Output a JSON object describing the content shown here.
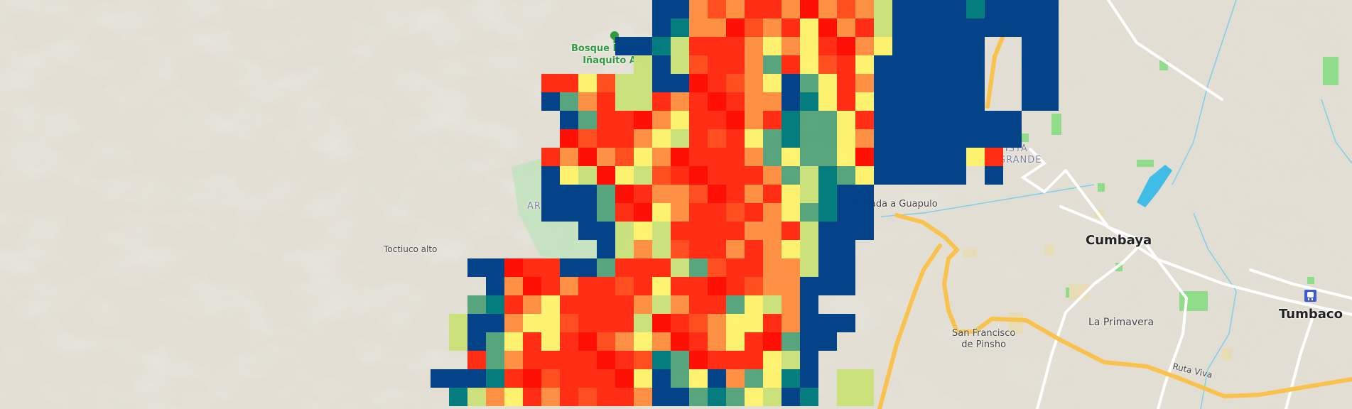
{
  "map": {
    "labels": {
      "bosque_line1": "Bosque Protector",
      "bosque_line2": "Iñaquito Alto",
      "ar": "AR",
      "toctiuco": "Toctiuco alto",
      "guapulo": "Entrada a Guapulo",
      "vista_line1": "VISTA",
      "vista_line2": "GRANDE",
      "cumbaya": "Cumbaya",
      "la_primavera": "La Primavera",
      "pinsho_line1": "San Francisco",
      "pinsho_line2": "de Pinsho",
      "tumbaco": "Tumbaco",
      "ruta_viva": "Ruta Viva"
    },
    "icons": [
      "tree-icon",
      "train-station-icon"
    ],
    "colors": {
      "land": "#e7e4df",
      "terrain": "#d6d1c4",
      "highway": "#f9c24c",
      "road": "#ffffff",
      "water": "#3fbde6",
      "park": "#8fdc8a"
    }
  },
  "heatmap": {
    "palette": {
      "B": "#003f87",
      "T": "#00797b",
      "G": "#55a37b",
      "L": "#c9e07a",
      "Y": "#fdf26e",
      "O": "#fd8e40",
      "R": "#ff2a10"
    },
    "rows": [
      "............BBORORRORORoLBBBBTBBBB",
      "............BTOORRORYRORLBBBBBBBBB",
      "..........BBTLRRROYOYRROYBBBBB..BB",
      "...........LBLRRROGRYRRYBBBBBB..BB",
      "......RRYRLLBBRRROYBGYROBBBBBB..BB",
      "......BGORLLRORRROOBTYRYBBBBBB..BB",
      ".......BGRRROYRRRORTGGYRBBBBBBBB..",
      ".......RRRROYLRRRYGTGGYOBBBBBBBB..",
      "......RORORYORRRROGYGGYRBBBBBYR...",
      "......BYLRYLRRRRRROGLTGYBBBBB.B...",
      "......BBBGRROORRRORYLTBB..........",
      "......BBBGRRYORRRROYGTBB..........",
      "........BBLYLRRRROORLBBB..........",
      ".........BLOLRRROROYLBB...........",
      "..BBRRRBBGRRRLGRRROOLBB...........",
      "...BORRORRRRYRRRRROOBBB...........",
      "..GTROYRRRROLORRGYLOB.............",
      ".LBBOYYRRRRLRRROYYROBBB...........",
      ".LBGYRYRRROYORROYRRGBB............",
      "..RGORRRRRRRTGRRRRYLB.............",
      "BBBTRRRRRRRYBGYBOGYTB.LL..........",
      ".TLOYRORRRROBBGTGYLBT.LL.........."
    ]
  }
}
